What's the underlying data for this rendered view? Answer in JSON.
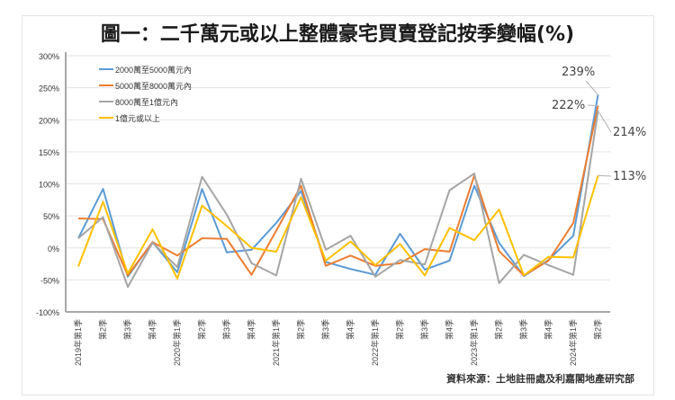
{
  "title": "圖一：二千萬元或以上整體豪宅買賣登記按季變幅(%)",
  "source": "資料來源：土地註冊處及利嘉閣地產研究部",
  "chart_data": {
    "type": "line",
    "title": "圖一：二千萬元或以上整體豪宅買賣登記按季變幅(%)",
    "xlabel": "",
    "ylabel": "",
    "ylim": [
      -100,
      300
    ],
    "yticks": [
      "-100%",
      "-50%",
      "0%",
      "50%",
      "100%",
      "150%",
      "200%",
      "250%",
      "300%"
    ],
    "ytick_values": [
      -100,
      -50,
      0,
      50,
      100,
      150,
      200,
      250,
      300
    ],
    "grid": true,
    "legend_position": "upper-left-inside",
    "categories": [
      "2019年第1季",
      "第2季",
      "第3季",
      "第4季",
      "2020年第1季",
      "第2季",
      "第3季",
      "第4季",
      "2021年第1季",
      "第2季",
      "第3季",
      "第4季",
      "2022年第1季",
      "第2季",
      "第3季",
      "第4季",
      "2023年第1季",
      "第2季",
      "第3季",
      "第4季",
      "2024年第1季",
      "第2季"
    ],
    "series": [
      {
        "name": "2000萬至5000萬元內",
        "color": "#5b9bd5",
        "values": [
          15,
          92,
          -45,
          9,
          -38,
          92,
          -7,
          -3,
          39,
          89,
          -22,
          -33,
          -42,
          22,
          -34,
          -20,
          97,
          8,
          -44,
          -19,
          19,
          239
        ]
      },
      {
        "name": "5000萬至8000萬元內",
        "color": "#ed7d31",
        "values": [
          46,
          45,
          -43,
          9,
          -12,
          15,
          14,
          -42,
          27,
          97,
          -28,
          -12,
          -28,
          -24,
          -2,
          -6,
          113,
          -5,
          -43,
          -20,
          39,
          222
        ]
      },
      {
        "name": "8000萬至1億元內",
        "color": "#a5a5a5",
        "values": [
          15,
          48,
          -61,
          8,
          -30,
          111,
          52,
          -24,
          -43,
          108,
          -3,
          19,
          -45,
          -19,
          -26,
          90,
          116,
          -55,
          -11,
          -27,
          -42,
          214
        ]
      },
      {
        "name": "1億元或以上",
        "color": "#ffc000",
        "values": [
          -29,
          72,
          -40,
          29,
          -48,
          66,
          34,
          0,
          -6,
          79,
          -20,
          10,
          -27,
          6,
          -43,
          31,
          12,
          60,
          -43,
          -14,
          -15,
          113
        ]
      }
    ],
    "annotations": [
      {
        "text": "239%",
        "series": "2000萬至5000萬元內",
        "category": "第2季",
        "x_index": 21,
        "value": 239
      },
      {
        "text": "222%",
        "series": "5000萬至8000萬元內",
        "category": "第2季",
        "x_index": 21,
        "value": 222
      },
      {
        "text": "214%",
        "series": "8000萬至1億元內",
        "category": "第2季",
        "x_index": 21,
        "value": 214
      },
      {
        "text": "113%",
        "series": "1億元或以上",
        "category": "第2季",
        "x_index": 21,
        "value": 113
      }
    ]
  }
}
